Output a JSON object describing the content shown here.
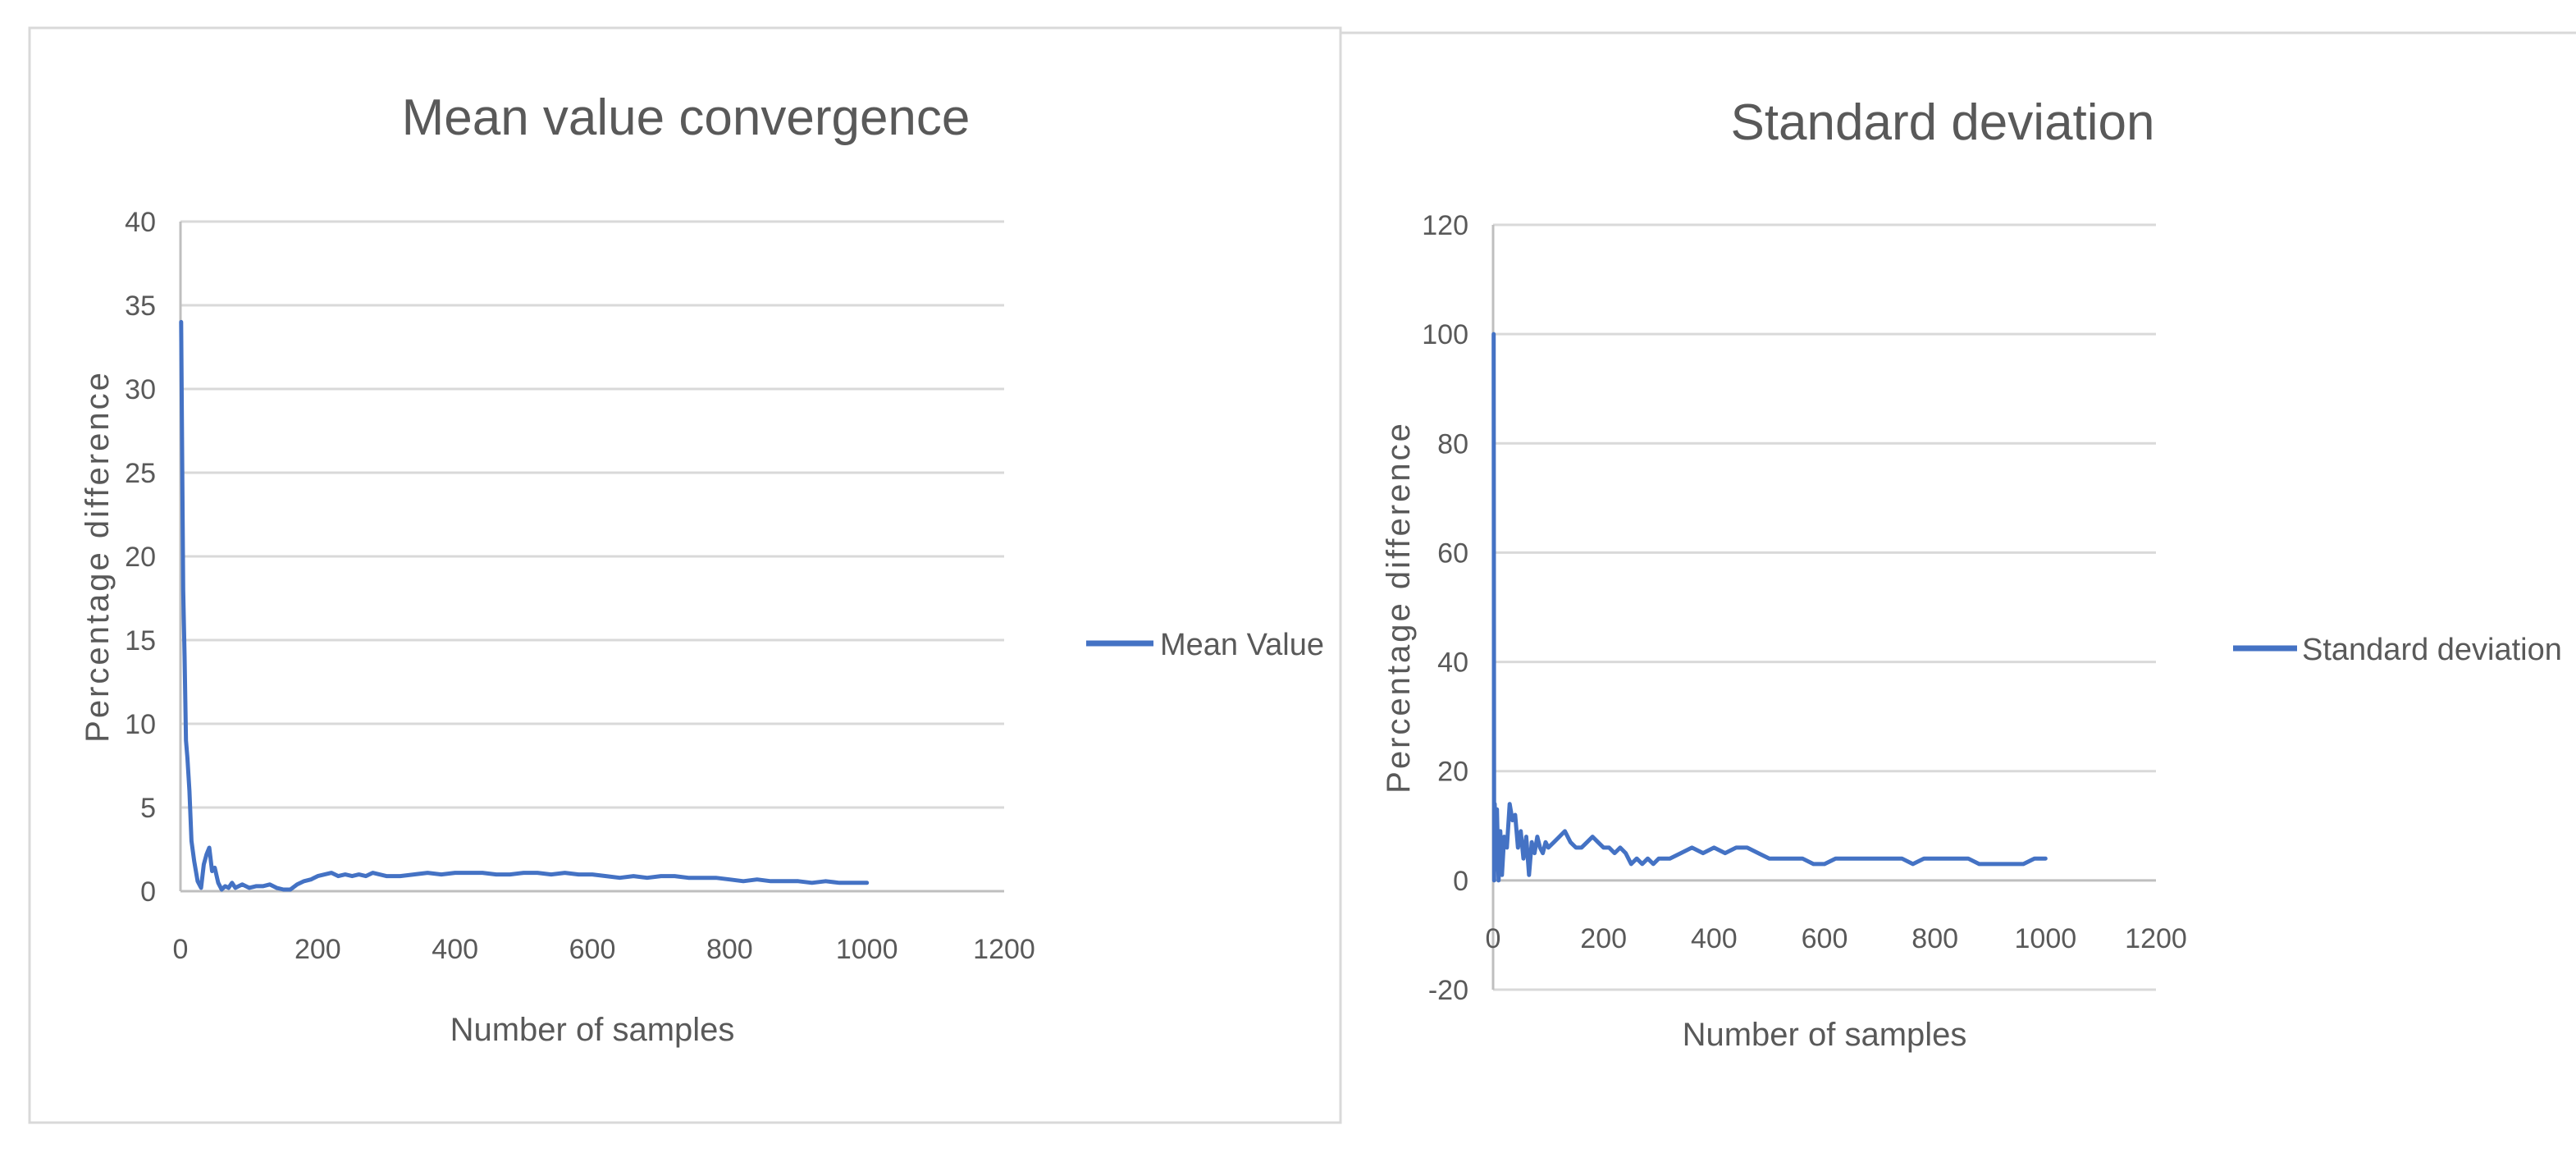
{
  "chart_data": [
    {
      "type": "line",
      "title": "Mean value convergence",
      "xlabel": "Number of samples",
      "ylabel": "Percentage difference",
      "xlim": [
        0,
        1200
      ],
      "ylim": [
        0,
        40
      ],
      "x_ticks": [
        0,
        200,
        400,
        600,
        800,
        1000,
        1200
      ],
      "y_ticks": [
        0,
        5,
        10,
        15,
        20,
        25,
        30,
        35,
        40
      ],
      "grid": true,
      "legend": "right",
      "series": [
        {
          "name": "Mean Value",
          "color": "#4472c4",
          "x": [
            1,
            4,
            6,
            8,
            10,
            13,
            16,
            20,
            25,
            30,
            34,
            38,
            42,
            46,
            50,
            55,
            60,
            65,
            70,
            75,
            80,
            90,
            100,
            110,
            120,
            130,
            140,
            150,
            160,
            170,
            180,
            190,
            200,
            210,
            220,
            230,
            240,
            250,
            260,
            270,
            280,
            290,
            300,
            320,
            340,
            360,
            380,
            400,
            420,
            440,
            460,
            480,
            500,
            520,
            540,
            560,
            580,
            600,
            620,
            640,
            660,
            680,
            700,
            720,
            740,
            760,
            780,
            800,
            820,
            840,
            860,
            880,
            900,
            920,
            940,
            960,
            980,
            1000
          ],
          "values": [
            34,
            18,
            14,
            9,
            8,
            6,
            3,
            1.8,
            0.6,
            0.2,
            1.6,
            2.2,
            2.6,
            1.2,
            1.4,
            0.5,
            0.1,
            0.3,
            0.2,
            0.5,
            0.2,
            0.4,
            0.2,
            0.3,
            0.3,
            0.4,
            0.2,
            0.1,
            0.1,
            0.4,
            0.6,
            0.7,
            0.9,
            1.0,
            1.1,
            0.9,
            1.0,
            0.9,
            1.0,
            0.9,
            1.1,
            1.0,
            0.9,
            0.9,
            1.0,
            1.1,
            1.0,
            1.1,
            1.1,
            1.1,
            1.0,
            1.0,
            1.1,
            1.1,
            1.0,
            1.1,
            1.0,
            1.0,
            0.9,
            0.8,
            0.9,
            0.8,
            0.9,
            0.9,
            0.8,
            0.8,
            0.8,
            0.7,
            0.6,
            0.7,
            0.6,
            0.6,
            0.6,
            0.5,
            0.6,
            0.5,
            0.5,
            0.5
          ]
        }
      ]
    },
    {
      "type": "line",
      "title": "Standard deviation",
      "xlabel": "Number of samples",
      "ylabel": "Percentage difference",
      "xlim": [
        0,
        1200
      ],
      "ylim": [
        -20,
        120
      ],
      "x_ticks": [
        0,
        200,
        400,
        600,
        800,
        1000,
        1200
      ],
      "y_ticks": [
        -20,
        0,
        20,
        40,
        60,
        80,
        100,
        120
      ],
      "grid": true,
      "legend": "right",
      "series": [
        {
          "name": "Standard deviation",
          "color": "#4472c4",
          "x": [
            1,
            2,
            3,
            5,
            7,
            10,
            13,
            16,
            20,
            25,
            30,
            35,
            40,
            45,
            50,
            55,
            60,
            65,
            70,
            75,
            80,
            85,
            90,
            95,
            100,
            110,
            120,
            130,
            140,
            150,
            160,
            170,
            180,
            190,
            200,
            210,
            220,
            230,
            240,
            250,
            260,
            270,
            280,
            290,
            300,
            320,
            340,
            360,
            380,
            400,
            420,
            440,
            460,
            480,
            500,
            520,
            540,
            560,
            580,
            600,
            620,
            640,
            660,
            680,
            700,
            720,
            740,
            760,
            780,
            800,
            820,
            840,
            860,
            880,
            900,
            920,
            940,
            960,
            980,
            1000
          ],
          "values": [
            100,
            0,
            14,
            2,
            13,
            0,
            9,
            1,
            8,
            6,
            14,
            11,
            12,
            6,
            9,
            4,
            8,
            1,
            7,
            5,
            8,
            6,
            5,
            7,
            6,
            7,
            8,
            9,
            7,
            6,
            6,
            7,
            8,
            7,
            6,
            6,
            5,
            6,
            5,
            3,
            4,
            3,
            4,
            3,
            4,
            4,
            5,
            6,
            5,
            6,
            5,
            6,
            6,
            5,
            4,
            4,
            4,
            4,
            3,
            3,
            4,
            4,
            4,
            4,
            4,
            4,
            4,
            3,
            4,
            4,
            4,
            4,
            4,
            3,
            3,
            3,
            3,
            3,
            4,
            4
          ]
        }
      ]
    }
  ]
}
